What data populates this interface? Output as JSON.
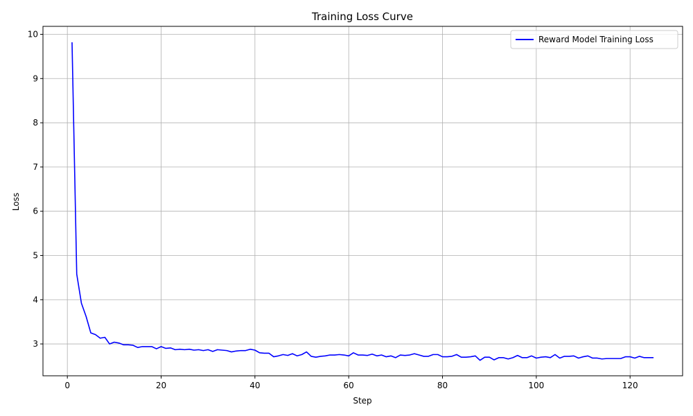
{
  "chart_data": {
    "type": "line",
    "title": "Training Loss Curve",
    "xlabel": "Step",
    "ylabel": "Loss",
    "xlim": [
      -5.2,
      131.2
    ],
    "ylim": [
      2.28,
      10.18
    ],
    "xticks": [
      0,
      20,
      40,
      60,
      80,
      100,
      120
    ],
    "yticks": [
      3,
      4,
      5,
      6,
      7,
      8,
      9,
      10
    ],
    "grid": true,
    "legend_position": "top-right",
    "series": [
      {
        "name": "Reward Model Training Loss",
        "color": "#0000ff",
        "x": [
          1,
          2,
          3,
          4,
          5,
          6,
          7,
          8,
          9,
          10,
          11,
          12,
          13,
          14,
          15,
          16,
          17,
          18,
          19,
          20,
          21,
          22,
          23,
          24,
          25,
          26,
          27,
          28,
          29,
          30,
          31,
          32,
          33,
          34,
          35,
          36,
          37,
          38,
          39,
          40,
          41,
          42,
          43,
          44,
          45,
          46,
          47,
          48,
          49,
          50,
          51,
          52,
          53,
          54,
          55,
          56,
          57,
          58,
          59,
          60,
          61,
          62,
          63,
          64,
          65,
          66,
          67,
          68,
          69,
          70,
          71,
          72,
          73,
          74,
          75,
          76,
          77,
          78,
          79,
          80,
          81,
          82,
          83,
          84,
          85,
          86,
          87,
          88,
          89,
          90,
          91,
          92,
          93,
          94,
          95,
          96,
          97,
          98,
          99,
          100,
          101,
          102,
          103,
          104,
          105,
          106,
          107,
          108,
          109,
          110,
          111,
          112,
          113,
          114,
          115,
          116,
          117,
          118,
          119,
          120,
          121,
          122,
          123,
          124,
          125
        ],
        "y": [
          9.82,
          4.58,
          3.92,
          3.62,
          3.25,
          3.21,
          3.13,
          3.15,
          3.0,
          3.04,
          3.02,
          2.98,
          2.98,
          2.97,
          2.92,
          2.94,
          2.94,
          2.94,
          2.89,
          2.94,
          2.9,
          2.91,
          2.87,
          2.88,
          2.87,
          2.88,
          2.86,
          2.87,
          2.85,
          2.87,
          2.83,
          2.87,
          2.86,
          2.85,
          2.82,
          2.84,
          2.85,
          2.85,
          2.88,
          2.86,
          2.8,
          2.79,
          2.79,
          2.71,
          2.73,
          2.76,
          2.74,
          2.78,
          2.73,
          2.76,
          2.82,
          2.72,
          2.7,
          2.72,
          2.73,
          2.75,
          2.75,
          2.76,
          2.75,
          2.73,
          2.8,
          2.75,
          2.75,
          2.74,
          2.77,
          2.73,
          2.75,
          2.71,
          2.73,
          2.69,
          2.75,
          2.74,
          2.75,
          2.78,
          2.75,
          2.72,
          2.72,
          2.76,
          2.76,
          2.71,
          2.71,
          2.72,
          2.76,
          2.7,
          2.7,
          2.71,
          2.73,
          2.63,
          2.7,
          2.7,
          2.64,
          2.69,
          2.69,
          2.66,
          2.69,
          2.74,
          2.69,
          2.69,
          2.73,
          2.68,
          2.7,
          2.71,
          2.69,
          2.76,
          2.68,
          2.72,
          2.72,
          2.73,
          2.68,
          2.71,
          2.73,
          2.68,
          2.68,
          2.66,
          2.67,
          2.67,
          2.67,
          2.67,
          2.71,
          2.71,
          2.68,
          2.72,
          2.69,
          2.69,
          2.69
        ]
      }
    ]
  }
}
